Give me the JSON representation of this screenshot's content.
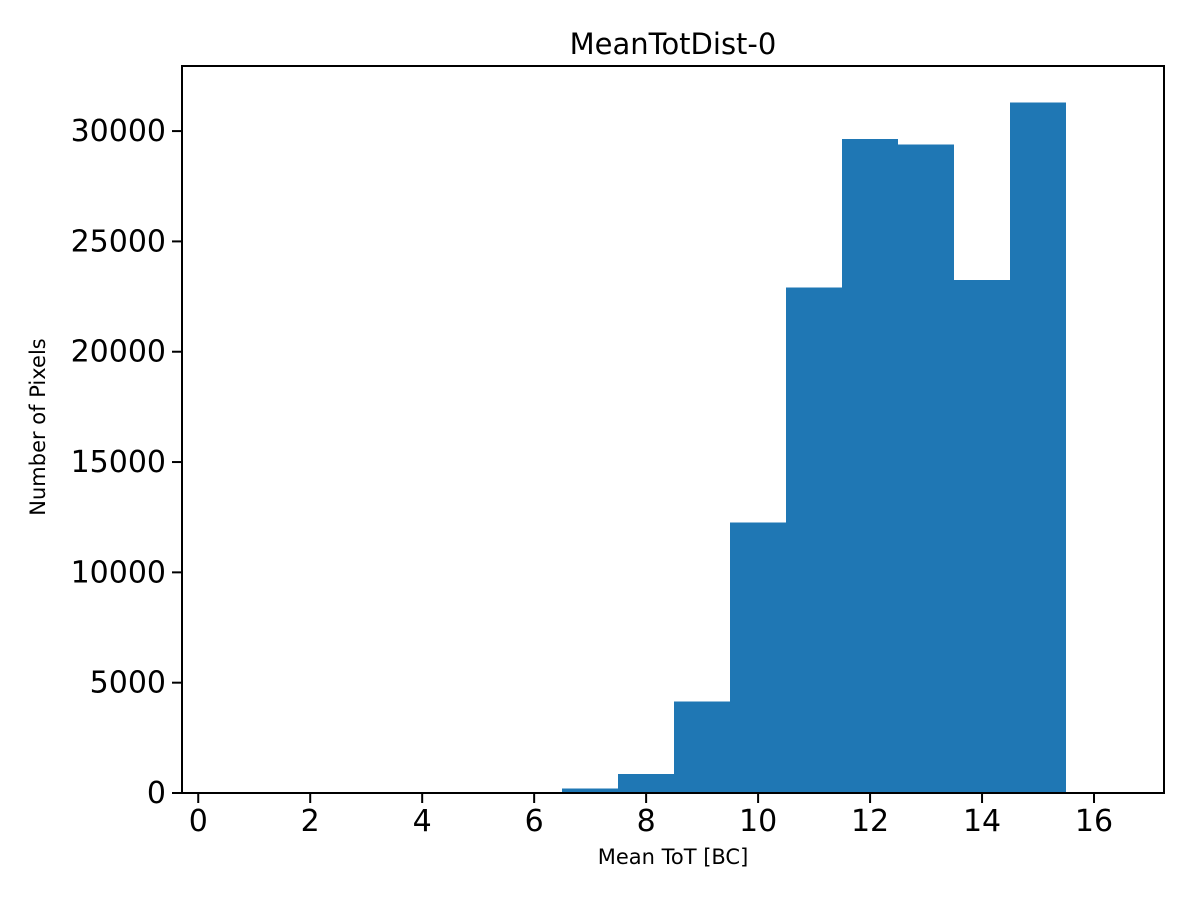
{
  "chart": {
    "title": "MeanTotDist-0",
    "xlabel": "Mean ToT [BC]",
    "ylabel": "Number of Pixels"
  },
  "chart_data": {
    "type": "bar",
    "subtype": "histogram",
    "title": "MeanTotDist-0",
    "xlabel": "Mean ToT [BC]",
    "ylabel": "Number of Pixels",
    "bin_edges": [
      6.5,
      7.5,
      8.5,
      9.5,
      10.5,
      11.5,
      12.5,
      13.5,
      14.5,
      15.5
    ],
    "values": [
      200,
      850,
      4150,
      12250,
      22900,
      29650,
      29400,
      23250,
      31300
    ],
    "xlim": [
      -0.29,
      17.25
    ],
    "ylim": [
      0,
      32950
    ],
    "xticks": [
      0,
      2,
      4,
      6,
      8,
      10,
      12,
      14,
      16
    ],
    "yticks": [
      0,
      5000,
      10000,
      15000,
      20000,
      25000,
      30000
    ],
    "bar_color": "#1f77b4",
    "axis_color": "#000000",
    "background_color": "#ffffff",
    "grid": false,
    "legend": null
  }
}
